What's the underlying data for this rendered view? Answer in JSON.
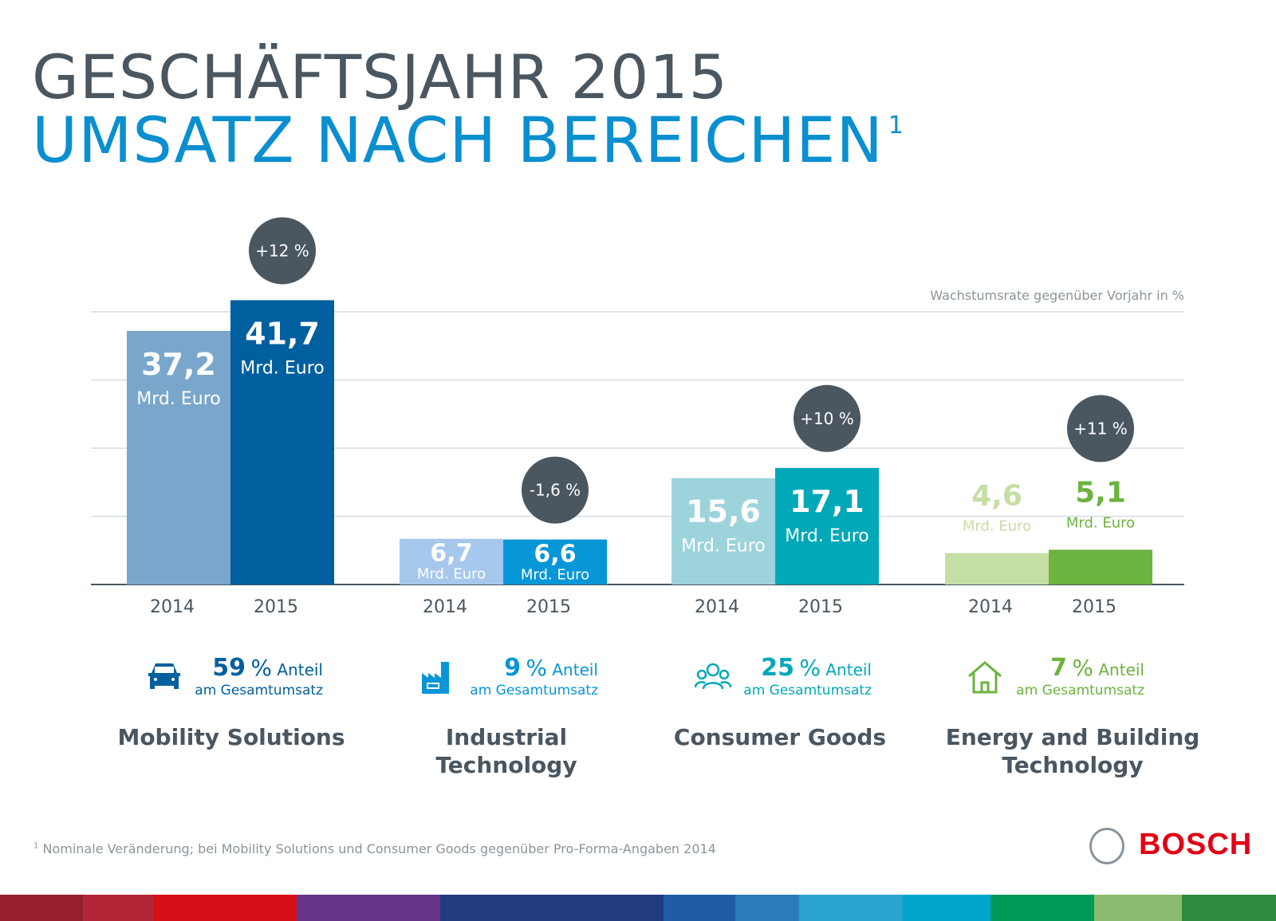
{
  "title": {
    "line1": "GESCHÄFTSJAHR 2015",
    "line2": "UMSATZ NACH BEREICHEN",
    "footnote_mark": "1"
  },
  "chart_data": {
    "type": "bar",
    "categories": [
      "Mobility Solutions",
      "Industrial Technology",
      "Consumer Goods",
      "Energy and Building Technology"
    ],
    "x_tick_labels": [
      "2014",
      "2015"
    ],
    "series": [
      {
        "name": "2014",
        "values": [
          37.2,
          6.7,
          15.6,
          4.6
        ]
      },
      {
        "name": "2015",
        "values": [
          41.7,
          6.6,
          17.1,
          5.1
        ]
      }
    ],
    "value_labels_2014": [
      "37,2",
      "6,7",
      "15,6",
      "4,6"
    ],
    "value_labels_2015": [
      "41,7",
      "6,6",
      "17,1",
      "5,1"
    ],
    "unit": "Mrd. Euro",
    "growth": [
      "+12 %",
      "-1,6 %",
      "+10 %",
      "+11 %"
    ],
    "growth_note": "Wachstumsrate gegenüber Vorjahr in %",
    "ylim": [
      0,
      40
    ],
    "grid": true,
    "colors": {
      "2014": [
        "#7aa6cb",
        "#a6c8ec",
        "#9dd4dc",
        "#c5dea3"
      ],
      "2015": [
        "#005f9e",
        "#0796d7",
        "#00a8b8",
        "#6cb33f"
      ],
      "bubble": "#4a5660"
    }
  },
  "segments": [
    {
      "name": "Mobility Solutions",
      "share": "59",
      "icon": "car-icon",
      "color": "#005f9e"
    },
    {
      "name": "Industrial Technology",
      "share": "9",
      "icon": "factory-icon",
      "color": "#0796d7"
    },
    {
      "name": "Consumer Goods",
      "share": "25",
      "icon": "people-icon",
      "color": "#00a8b8"
    },
    {
      "name": "Energy and Building Technology",
      "share": "7",
      "icon": "house-icon",
      "color": "#6cb33f"
    }
  ],
  "share_labels": {
    "pct": "%",
    "anteil": "Anteil",
    "sub": "am Gesamtumsatz"
  },
  "footnote": {
    "mark": "1",
    "text": "Nominale Veränderung; bei Mobility Solutions und Consumer Goods gegenüber Pro-Forma-Angaben 2014"
  },
  "brand": "BOSCH"
}
